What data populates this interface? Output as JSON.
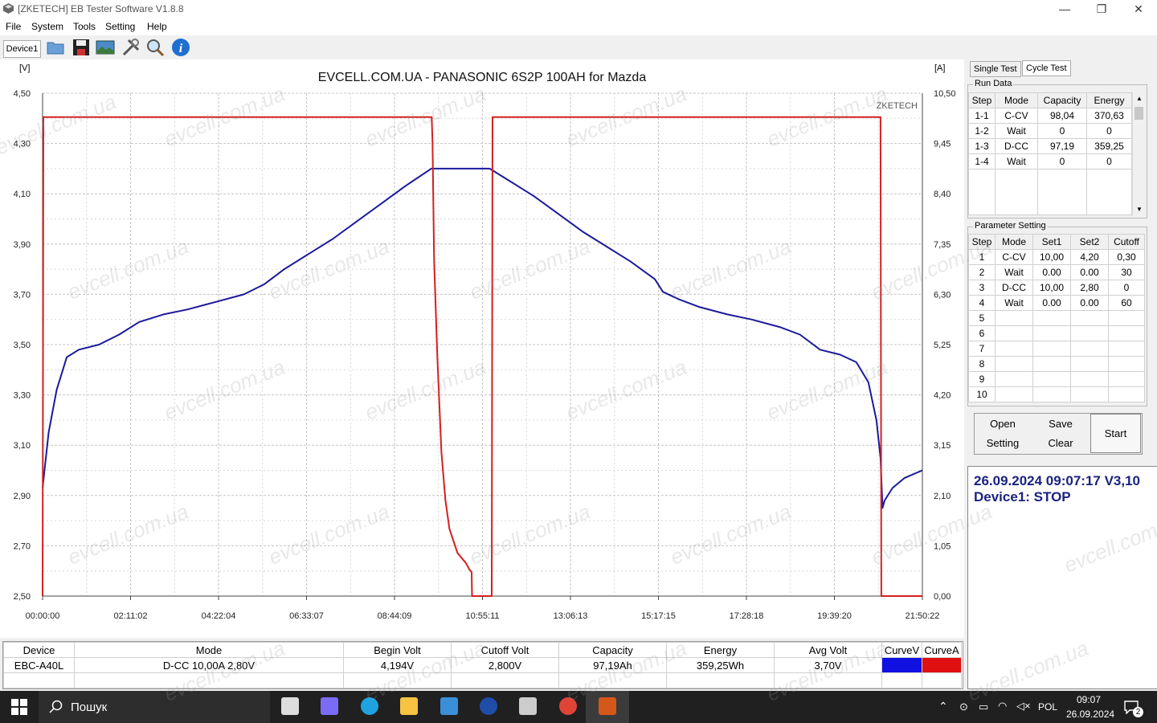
{
  "window": {
    "title": "[ZKETECH] EB Tester Software V1.8.8",
    "controls": [
      "—",
      "❐",
      "✕"
    ]
  },
  "menu": [
    "File",
    "System",
    "Tools",
    "Setting",
    "Help"
  ],
  "toolbar": {
    "device_tab": "Device1",
    "icons": [
      "folder-open-icon",
      "save-icon",
      "image-icon",
      "tools-icon",
      "zoom-icon",
      "info-icon"
    ]
  },
  "chart": {
    "title": "EVCELL.COM.UA - PANASONIC 6S2P 100AH for Mazda",
    "left_unit": "[V]",
    "right_unit": "[A]",
    "brand": "ZKETECH",
    "left_ticks": [
      "4,50",
      "4,30",
      "4,10",
      "3,90",
      "3,70",
      "3,50",
      "3,30",
      "3,10",
      "2,90",
      "2,70",
      "2,50"
    ],
    "right_ticks": [
      "10,50",
      "9,45",
      "8,40",
      "7,35",
      "6,30",
      "5,25",
      "4,20",
      "3,15",
      "2,10",
      "1,05",
      "0,00"
    ],
    "x_ticks": [
      "00:00:00",
      "02:11:02",
      "04:22:04",
      "06:33:07",
      "08:44:09",
      "10:55:11",
      "13:06:13",
      "15:17:15",
      "17:28:18",
      "19:39:20",
      "21:50:22"
    ]
  },
  "chart_data": {
    "type": "line",
    "title": "EVCELL.COM.UA - PANASONIC 6S2P 100AH for Mazda",
    "xlabel": "",
    "ylabel": "[V]",
    "y2label": "[A]",
    "x_unit": "hours",
    "ylim": [
      2.5,
      4.5
    ],
    "y2lim": [
      0,
      10.5
    ],
    "xlim": [
      0,
      21.84
    ],
    "grid": true,
    "series": [
      {
        "color": "#1a1a9c",
        "axis": "left",
        "points": [
          [
            0,
            2.93
          ],
          [
            0.15,
            3.15
          ],
          [
            0.35,
            3.32
          ],
          [
            0.6,
            3.45
          ],
          [
            0.9,
            3.48
          ],
          [
            1.4,
            3.5
          ],
          [
            1.9,
            3.54
          ],
          [
            2.4,
            3.59
          ],
          [
            3.0,
            3.62
          ],
          [
            3.6,
            3.64
          ],
          [
            4.3,
            3.67
          ],
          [
            5.0,
            3.7
          ],
          [
            5.5,
            3.74
          ],
          [
            6.0,
            3.8
          ],
          [
            6.6,
            3.86
          ],
          [
            7.2,
            3.92
          ],
          [
            7.8,
            3.99
          ],
          [
            8.4,
            4.06
          ],
          [
            9.0,
            4.13
          ],
          [
            9.65,
            4.2
          ],
          [
            11.1,
            4.2
          ],
          [
            11.6,
            4.15
          ],
          [
            12.2,
            4.09
          ],
          [
            12.8,
            4.02
          ],
          [
            13.4,
            3.95
          ],
          [
            14.0,
            3.89
          ],
          [
            14.6,
            3.83
          ],
          [
            15.2,
            3.76
          ],
          [
            15.4,
            3.71
          ],
          [
            15.8,
            3.68
          ],
          [
            16.3,
            3.65
          ],
          [
            17.0,
            3.62
          ],
          [
            17.6,
            3.6
          ],
          [
            18.3,
            3.57
          ],
          [
            18.8,
            3.54
          ],
          [
            19.3,
            3.48
          ],
          [
            19.8,
            3.46
          ],
          [
            20.2,
            3.43
          ],
          [
            20.5,
            3.35
          ],
          [
            20.7,
            3.2
          ],
          [
            20.8,
            3.05
          ],
          [
            20.85,
            2.85
          ],
          [
            20.9,
            2.88
          ],
          [
            21.1,
            2.93
          ],
          [
            21.4,
            2.97
          ],
          [
            21.84,
            3.0
          ]
        ]
      },
      {
        "color": "#d32020",
        "axis": "right",
        "points": [
          [
            0,
            0
          ],
          [
            0.02,
            10
          ],
          [
            9.66,
            10
          ],
          [
            9.68,
            9.5
          ],
          [
            9.72,
            7
          ],
          [
            9.8,
            5
          ],
          [
            9.9,
            3
          ],
          [
            10.0,
            2
          ],
          [
            10.1,
            1.4
          ],
          [
            10.3,
            0.9
          ],
          [
            10.5,
            0.7
          ],
          [
            10.6,
            0.55
          ],
          [
            10.65,
            0.5
          ],
          [
            10.66,
            0
          ],
          [
            11.15,
            0
          ],
          [
            11.17,
            10
          ],
          [
            20.8,
            10
          ],
          [
            20.82,
            0
          ],
          [
            21.84,
            0
          ]
        ]
      }
    ]
  },
  "right_panel": {
    "tabs": [
      "Single Test",
      "Cycle Test"
    ],
    "run_data": {
      "label": "Run Data",
      "headers": [
        "Step",
        "Mode",
        "Capacity",
        "Energy"
      ],
      "rows": [
        [
          "1-1",
          "C-CV",
          "98,04",
          "370,63"
        ],
        [
          "1-2",
          "Wait",
          "0",
          "0"
        ],
        [
          "1-3",
          "D-CC",
          "97,19",
          "359,25"
        ],
        [
          "1-4",
          "Wait",
          "0",
          "0"
        ]
      ]
    },
    "param": {
      "label": "Parameter Setting",
      "headers": [
        "Step",
        "Mode",
        "Set1",
        "Set2",
        "Cutoff"
      ],
      "rows": [
        [
          "1",
          "C-CV",
          "10,00",
          "4,20",
          "0,30"
        ],
        [
          "2",
          "Wait",
          "0.00",
          "0.00",
          "30"
        ],
        [
          "3",
          "D-CC",
          "10,00",
          "2,80",
          "0"
        ],
        [
          "4",
          "Wait",
          "0.00",
          "0.00",
          "60"
        ],
        [
          "5",
          "",
          "",
          "",
          ""
        ],
        [
          "6",
          "",
          "",
          "",
          ""
        ],
        [
          "7",
          "",
          "",
          "",
          ""
        ],
        [
          "8",
          "",
          "",
          "",
          ""
        ],
        [
          "9",
          "",
          "",
          "",
          ""
        ],
        [
          "10",
          "",
          "",
          "",
          ""
        ]
      ]
    },
    "buttons": {
      "open": "Open",
      "save": "Save",
      "setting": "Setting",
      "clear": "Clear",
      "start": "Start"
    },
    "status": {
      "line1": "26.09.2024 09:07:17  V3,10",
      "line2": "Device1: STOP"
    }
  },
  "summary": {
    "headers": [
      "Device",
      "Mode",
      "Begin Volt",
      "Cutoff Volt",
      "Capacity",
      "Energy",
      "Avg Volt",
      "CurveV",
      "CurveA"
    ],
    "row": [
      "EBC-A40L",
      "D-CC  10,00A  2,80V",
      "4,194V",
      "2,800V",
      "97,19Ah",
      "359,25Wh",
      "3,70V"
    ],
    "curve_colors": {
      "v": "#1010e0",
      "a": "#e01010"
    }
  },
  "taskbar": {
    "search_placeholder": "Пошук",
    "lang": "POL",
    "time": "09:07",
    "date": "26.09.2024",
    "notif_count": "2",
    "apps": [
      "task-view-icon",
      "copilot-icon",
      "edge-icon",
      "file-explorer-icon",
      "mail-icon",
      "teamviewer-icon",
      "package-icon",
      "chrome-icon",
      "eb-tester-icon"
    ]
  },
  "watermark": "evcell.com.ua"
}
